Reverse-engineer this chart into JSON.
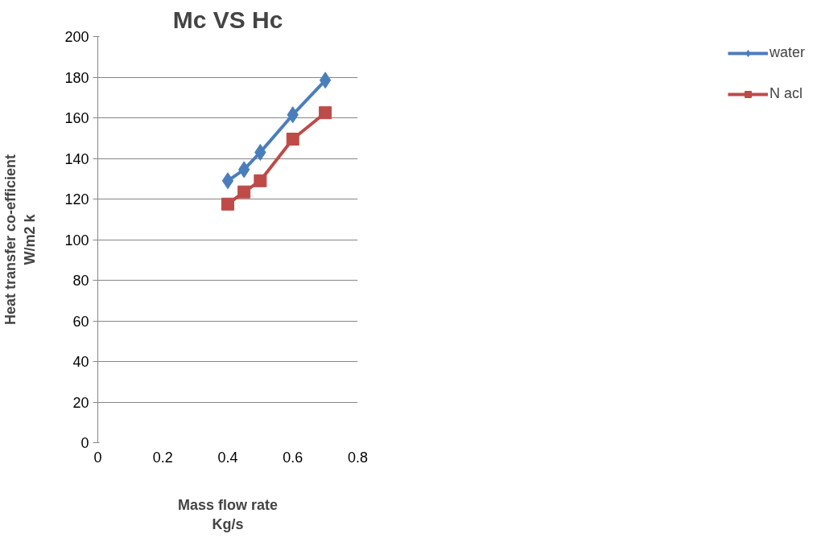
{
  "chart_data": {
    "type": "line",
    "title": "Mc VS Hc",
    "xlabel": "Mass flow rate\nKg/s",
    "ylabel": "Heat transfer co-efficient\nW/m2 k",
    "x": [
      0.4,
      0.45,
      0.5,
      0.6,
      0.7
    ],
    "series": [
      {
        "name": "water",
        "color": "#4a7ebb",
        "values": [
          129,
          134.5,
          143,
          161.5,
          178.5
        ],
        "marker": "diamond"
      },
      {
        "name": "N acl",
        "color": "#be4b48",
        "values": [
          117.5,
          123.5,
          129,
          149.5,
          162.5
        ],
        "marker": "square"
      }
    ],
    "xlim": [
      0,
      0.8
    ],
    "xticks": [
      0,
      0.2,
      0.4,
      0.6,
      0.8
    ],
    "ylim": [
      0,
      200
    ],
    "yticks": [
      0,
      20,
      40,
      60,
      80,
      100,
      120,
      140,
      160,
      180,
      200
    ],
    "grid": "y",
    "legend": "right",
    "line_style": "solid"
  }
}
